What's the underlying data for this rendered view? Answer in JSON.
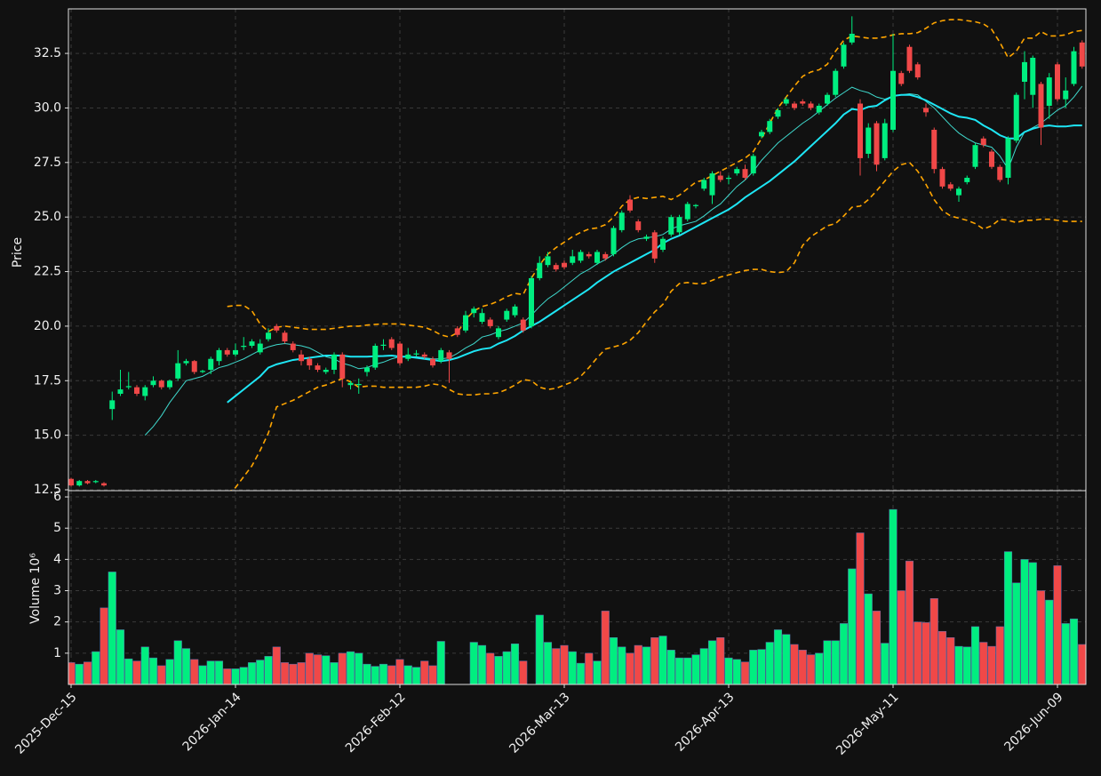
{
  "chart_data": {
    "type": "candlestick",
    "ylabel": "Price",
    "ylim": [
      12.46,
      34.54
    ],
    "yticks": [
      12.5,
      {
        "value": 15,
        "label": "15.0"
      },
      17.5,
      {
        "value": 20,
        "label": "20.0"
      },
      22.5,
      {
        "value": 25,
        "label": "25.0"
      },
      27.5,
      {
        "value": 30,
        "label": "30.0"
      },
      32.5
    ],
    "grid": true,
    "up_color": "#00ee80",
    "down_color": "#f04848",
    "categories": [
      "2025-Dec-15",
      null,
      null,
      null,
      null,
      null,
      null,
      null,
      null,
      null,
      null,
      null,
      null,
      null,
      null,
      null,
      null,
      null,
      null,
      null,
      "2026-Jan-14",
      null,
      null,
      null,
      null,
      null,
      null,
      null,
      null,
      null,
      null,
      null,
      null,
      null,
      null,
      null,
      null,
      null,
      null,
      null,
      "2026-Feb-12",
      null,
      null,
      null,
      null,
      null,
      null,
      null,
      null,
      null,
      null,
      null,
      null,
      null,
      null,
      null,
      null,
      null,
      null,
      null,
      "2026-Mar-13",
      null,
      null,
      null,
      null,
      null,
      null,
      null,
      null,
      null,
      null,
      null,
      null,
      null,
      null,
      null,
      null,
      null,
      null,
      null,
      "2026-Apr-13",
      null,
      null,
      null,
      null,
      null,
      null,
      null,
      null,
      null,
      null,
      null,
      null,
      null,
      null,
      null,
      null,
      null,
      null,
      null,
      "2026-May-11",
      null,
      null,
      null,
      null,
      null,
      null,
      null,
      null,
      null,
      null,
      null,
      null,
      null,
      null,
      null,
      null,
      null,
      null,
      null,
      "2026-Jun-09",
      null,
      null,
      null
    ],
    "open": [
      13.0,
      12.7,
      12.9,
      12.85,
      12.8,
      16.2,
      16.9,
      17.2,
      17.2,
      16.8,
      17.3,
      17.5,
      17.2,
      17.6,
      18.3,
      18.4,
      17.9,
      18.0,
      18.4,
      18.9,
      18.7,
      19.05,
      19.1,
      18.8,
      19.4,
      20.0,
      19.7,
      19.2,
      18.7,
      18.5,
      18.2,
      17.9,
      18.0,
      18.7,
      17.3,
      17.3,
      17.9,
      18.1,
      19.1,
      19.4,
      19.2,
      18.5,
      18.7,
      18.7,
      18.5,
      18.4,
      18.8,
      19.9,
      19.8,
      20.6,
      20.2,
      20.3,
      19.5,
      20.3,
      20.5,
      20.3,
      20.0,
      22.2,
      22.8,
      22.8,
      22.9,
      22.9,
      23.0,
      23.3,
      22.9,
      23.3,
      23.3,
      24.4,
      25.8,
      24.8,
      24.0,
      24.3,
      23.5,
      24.2,
      24.3,
      24.9,
      25.5,
      26.3,
      26.0,
      26.9,
      26.75,
      27.0,
      27.2,
      27.0,
      28.7,
      28.9,
      29.6,
      30.2,
      30.2,
      30.3,
      30.2,
      29.8,
      30.2,
      30.6,
      31.9,
      33.0,
      30.2,
      27.9,
      29.3,
      27.7,
      29.0,
      31.6,
      32.8,
      32.0,
      30.0,
      29.0,
      27.2,
      26.5,
      26.0,
      26.6,
      27.3,
      28.6,
      28.0,
      27.3,
      26.8,
      28.5,
      31.2,
      30.6,
      31.1,
      30.1,
      32.0,
      30.4,
      31.1,
      33.0
    ],
    "high": [
      13.05,
      12.95,
      12.95,
      12.95,
      12.85,
      17.0,
      18.0,
      17.9,
      17.3,
      17.3,
      17.7,
      17.55,
      17.55,
      18.9,
      18.5,
      18.45,
      18.0,
      18.6,
      19.0,
      19.0,
      19.2,
      19.5,
      19.4,
      19.4,
      19.9,
      20.1,
      19.8,
      19.3,
      18.9,
      18.6,
      18.3,
      18.1,
      18.8,
      18.8,
      17.5,
      17.6,
      18.2,
      19.2,
      19.4,
      19.5,
      19.3,
      19.0,
      18.9,
      18.8,
      18.6,
      19.0,
      18.9,
      20.0,
      20.7,
      20.9,
      20.8,
      20.4,
      20.0,
      20.8,
      21.0,
      20.4,
      22.3,
      23.2,
      23.4,
      22.9,
      23.0,
      23.5,
      23.5,
      23.4,
      23.5,
      23.4,
      24.6,
      25.3,
      26.0,
      24.9,
      24.2,
      24.4,
      24.1,
      25.1,
      25.1,
      25.7,
      25.6,
      26.8,
      27.1,
      27.1,
      26.9,
      27.3,
      27.4,
      27.9,
      29.0,
      29.5,
      30.0,
      30.5,
      30.3,
      30.4,
      30.3,
      30.2,
      30.7,
      31.8,
      33.0,
      34.2,
      30.4,
      29.3,
      29.4,
      29.5,
      33.4,
      31.7,
      32.9,
      32.1,
      30.2,
      29.1,
      27.3,
      26.6,
      26.4,
      26.9,
      28.4,
      28.7,
      28.1,
      27.4,
      28.7,
      30.7,
      32.6,
      32.4,
      31.2,
      31.6,
      32.1,
      31.4,
      32.8,
      33.1
    ],
    "low": [
      12.65,
      12.65,
      12.75,
      12.8,
      12.65,
      15.7,
      16.8,
      17.1,
      16.8,
      16.6,
      17.2,
      17.1,
      17.1,
      17.5,
      18.2,
      17.8,
      17.85,
      17.8,
      18.2,
      18.6,
      18.6,
      18.9,
      19.0,
      18.7,
      19.3,
      19.7,
      19.2,
      18.8,
      18.2,
      18.0,
      17.9,
      17.8,
      17.8,
      17.2,
      17.1,
      16.9,
      17.7,
      18.0,
      18.9,
      18.9,
      18.2,
      18.4,
      18.6,
      18.5,
      18.1,
      18.3,
      17.4,
      19.5,
      19.7,
      20.4,
      20.1,
      19.9,
      19.4,
      20.2,
      20.4,
      19.7,
      19.9,
      22.1,
      22.7,
      22.5,
      22.6,
      22.8,
      22.9,
      23.1,
      22.8,
      23.0,
      23.2,
      24.3,
      25.2,
      24.3,
      23.9,
      22.9,
      23.4,
      24.1,
      24.2,
      24.8,
      25.4,
      26.2,
      25.6,
      26.6,
      26.5,
      26.9,
      26.7,
      26.9,
      28.6,
      28.8,
      29.5,
      30.1,
      29.9,
      30.1,
      29.9,
      29.7,
      30.1,
      30.5,
      31.8,
      32.9,
      26.9,
      27.7,
      27.1,
      27.6,
      28.9,
      31.0,
      31.6,
      31.3,
      29.6,
      27.0,
      26.3,
      26.2,
      25.7,
      26.5,
      27.2,
      28.2,
      27.2,
      26.6,
      26.5,
      28.4,
      30.4,
      30.0,
      28.3,
      29.5,
      30.3,
      30.0,
      31.0,
      31.8
    ],
    "close": [
      12.7,
      12.9,
      12.8,
      12.9,
      12.7,
      16.6,
      17.1,
      17.25,
      16.9,
      17.2,
      17.5,
      17.2,
      17.5,
      18.3,
      18.4,
      17.9,
      17.95,
      18.5,
      18.9,
      18.7,
      18.9,
      19.1,
      19.3,
      19.2,
      19.7,
      19.8,
      19.3,
      18.9,
      18.4,
      18.2,
      18.0,
      18.0,
      18.7,
      17.6,
      17.4,
      17.35,
      18.1,
      19.1,
      19.15,
      19.0,
      18.3,
      18.7,
      18.75,
      18.6,
      18.2,
      18.9,
      18.5,
      19.6,
      20.5,
      20.8,
      20.6,
      20.0,
      19.9,
      20.7,
      20.9,
      19.8,
      22.2,
      22.9,
      23.2,
      22.6,
      22.7,
      23.2,
      23.4,
      23.2,
      23.4,
      23.1,
      24.5,
      25.2,
      25.3,
      24.4,
      24.1,
      23.1,
      24.0,
      25.0,
      25.0,
      25.6,
      25.55,
      26.7,
      27.0,
      26.7,
      26.8,
      27.2,
      26.8,
      27.8,
      28.9,
      29.4,
      29.9,
      30.4,
      30.0,
      30.2,
      30.0,
      30.1,
      30.6,
      31.7,
      32.9,
      33.4,
      27.7,
      29.1,
      27.4,
      29.3,
      31.7,
      31.1,
      31.7,
      31.4,
      29.8,
      27.2,
      26.4,
      26.3,
      26.3,
      26.8,
      28.3,
      28.3,
      27.3,
      26.7,
      28.6,
      30.6,
      32.1,
      32.3,
      29.1,
      31.4,
      30.4,
      30.8,
      32.6,
      31.9
    ],
    "lines": [
      {
        "color": "#ffa500",
        "style": "dashed",
        "width": 1.6,
        "values": [
          null,
          null,
          null,
          null,
          null,
          null,
          null,
          null,
          null,
          null,
          null,
          null,
          null,
          null,
          null,
          null,
          null,
          null,
          null,
          20.9,
          20.95,
          20.95,
          20.7,
          20.1,
          19.75,
          19.95,
          20.0,
          19.95,
          19.9,
          19.85,
          19.85,
          19.85,
          19.9,
          19.95,
          20.0,
          20.0,
          20.05,
          20.08,
          20.1,
          20.1,
          20.1,
          20.05,
          20.0,
          19.95,
          19.8,
          19.6,
          19.5,
          19.7,
          20.3,
          20.7,
          20.9,
          21.0,
          21.15,
          21.35,
          21.5,
          21.45,
          22.2,
          22.8,
          23.3,
          23.6,
          23.85,
          24.1,
          24.3,
          24.45,
          24.5,
          24.65,
          25.0,
          25.5,
          25.8,
          25.9,
          25.85,
          25.9,
          25.95,
          25.8,
          26.0,
          26.3,
          26.6,
          26.7,
          26.9,
          27.1,
          27.3,
          27.5,
          27.7,
          28.0,
          28.6,
          29.3,
          30.0,
          30.5,
          31.0,
          31.45,
          31.65,
          31.75,
          32.0,
          32.6,
          33.1,
          33.3,
          33.25,
          33.2,
          33.2,
          33.25,
          33.35,
          33.4,
          33.4,
          33.45,
          33.65,
          33.9,
          34.0,
          34.05,
          34.05,
          34.0,
          33.95,
          33.85,
          33.6,
          33.0,
          32.3,
          32.6,
          33.2,
          33.2,
          33.5,
          33.3,
          33.3,
          33.35,
          33.5,
          33.55
        ]
      },
      {
        "color": "#ffa500",
        "style": "dashed",
        "width": 1.6,
        "values": [
          null,
          null,
          null,
          null,
          null,
          null,
          null,
          null,
          null,
          null,
          null,
          null,
          null,
          null,
          null,
          null,
          null,
          null,
          null,
          12.35,
          12.6,
          13.1,
          13.6,
          14.3,
          15.1,
          16.3,
          16.45,
          16.6,
          16.8,
          17.0,
          17.2,
          17.3,
          17.45,
          17.6,
          17.45,
          17.2,
          17.25,
          17.25,
          17.2,
          17.2,
          17.2,
          17.2,
          17.2,
          17.25,
          17.35,
          17.3,
          17.1,
          16.9,
          16.85,
          16.85,
          16.9,
          16.9,
          16.95,
          17.1,
          17.3,
          17.55,
          17.5,
          17.2,
          17.1,
          17.15,
          17.3,
          17.45,
          17.7,
          18.1,
          18.55,
          18.95,
          19.05,
          19.15,
          19.35,
          19.7,
          20.2,
          20.65,
          21.0,
          21.6,
          21.95,
          22.0,
          21.95,
          21.95,
          22.1,
          22.25,
          22.35,
          22.45,
          22.55,
          22.6,
          22.6,
          22.5,
          22.45,
          22.5,
          22.9,
          23.7,
          24.1,
          24.35,
          24.6,
          24.7,
          25.05,
          25.45,
          25.5,
          25.8,
          26.2,
          26.65,
          27.1,
          27.4,
          27.5,
          27.1,
          26.5,
          25.8,
          25.3,
          25.05,
          24.95,
          24.85,
          24.7,
          24.45,
          24.6,
          24.9,
          24.85,
          24.75,
          24.85,
          24.85,
          24.9,
          24.9,
          24.85,
          24.8,
          24.8,
          24.8
        ]
      },
      {
        "color": "#3fd8cc",
        "style": "solid",
        "width": 1,
        "values": [
          null,
          null,
          null,
          null,
          null,
          null,
          null,
          null,
          null,
          15.0,
          15.4,
          15.9,
          16.5,
          17.0,
          17.5,
          17.6,
          17.7,
          17.9,
          18.1,
          18.2,
          18.35,
          18.5,
          18.7,
          18.9,
          19.05,
          19.15,
          19.2,
          19.15,
          19.1,
          19.0,
          18.8,
          18.6,
          18.5,
          18.3,
          18.2,
          18.05,
          18.1,
          18.25,
          18.35,
          18.5,
          18.6,
          18.6,
          18.6,
          18.55,
          18.5,
          18.5,
          18.55,
          18.75,
          19.0,
          19.2,
          19.5,
          19.6,
          19.75,
          19.85,
          20.0,
          20.15,
          20.5,
          20.9,
          21.25,
          21.5,
          21.8,
          22.1,
          22.4,
          22.6,
          22.85,
          23.05,
          23.3,
          23.6,
          23.85,
          24.0,
          24.05,
          24.1,
          24.2,
          24.45,
          24.6,
          24.7,
          24.8,
          25.05,
          25.35,
          25.6,
          26.0,
          26.4,
          26.7,
          27.1,
          27.6,
          28.0,
          28.4,
          28.7,
          29.0,
          29.3,
          29.55,
          29.85,
          30.15,
          30.45,
          30.7,
          30.95,
          30.8,
          30.7,
          30.5,
          30.4,
          30.55,
          30.6,
          30.65,
          30.6,
          30.3,
          30.0,
          29.6,
          29.2,
          28.85,
          28.6,
          28.4,
          28.3,
          28.2,
          27.8,
          27.2,
          28.2,
          28.9,
          29.1,
          29.3,
          29.6,
          29.9,
          30.1,
          30.5,
          31.0
        ]
      },
      {
        "color": "#1ee6f5",
        "style": "solid",
        "width": 2,
        "values": [
          null,
          null,
          null,
          null,
          null,
          null,
          null,
          null,
          null,
          null,
          null,
          null,
          null,
          null,
          null,
          null,
          null,
          null,
          null,
          16.5,
          16.8,
          17.1,
          17.4,
          17.7,
          18.1,
          18.25,
          18.35,
          18.45,
          18.5,
          18.55,
          18.6,
          18.65,
          18.65,
          18.65,
          18.6,
          18.6,
          18.6,
          18.62,
          18.63,
          18.65,
          18.6,
          18.6,
          18.55,
          18.5,
          18.45,
          18.4,
          18.45,
          18.55,
          18.7,
          18.85,
          18.95,
          19.0,
          19.2,
          19.35,
          19.55,
          19.8,
          20.0,
          20.2,
          20.45,
          20.7,
          20.95,
          21.2,
          21.45,
          21.7,
          22.0,
          22.25,
          22.5,
          22.7,
          22.9,
          23.1,
          23.3,
          23.5,
          23.8,
          24.0,
          24.15,
          24.35,
          24.55,
          24.75,
          24.95,
          25.15,
          25.35,
          25.6,
          25.9,
          26.15,
          26.4,
          26.65,
          26.95,
          27.25,
          27.55,
          27.9,
          28.25,
          28.6,
          28.95,
          29.3,
          29.7,
          29.95,
          29.9,
          30.05,
          30.1,
          30.35,
          30.55,
          30.6,
          30.6,
          30.5,
          30.35,
          30.15,
          29.95,
          29.75,
          29.6,
          29.55,
          29.45,
          29.2,
          29.0,
          28.75,
          28.6,
          28.6,
          28.9,
          29.05,
          29.15,
          29.2,
          29.15,
          29.15,
          29.2,
          29.2
        ]
      }
    ],
    "volume": {
      "ylabel": "Volume  10⁶",
      "ylim": [
        0,
        6.2
      ],
      "yticks": [
        1,
        2,
        3,
        4,
        5,
        6
      ],
      "values": [
        0.7,
        0.65,
        0.72,
        1.05,
        2.45,
        3.6,
        1.75,
        0.82,
        0.75,
        1.2,
        0.85,
        0.6,
        0.8,
        1.4,
        1.15,
        0.8,
        0.6,
        0.75,
        0.75,
        0.5,
        0.5,
        0.55,
        0.7,
        0.78,
        0.9,
        1.2,
        0.7,
        0.65,
        0.7,
        1.0,
        0.95,
        0.92,
        0.7,
        1.0,
        1.05,
        1.0,
        0.65,
        0.58,
        0.65,
        0.6,
        0.8,
        0.6,
        0.55,
        0.75,
        0.6,
        1.38,
        0,
        0,
        0,
        1.35,
        1.25,
        1.0,
        0.9,
        1.05,
        1.3,
        0.75,
        0,
        2.22,
        1.35,
        1.15,
        1.25,
        1.05,
        0.68,
        1.0,
        0.75,
        2.35,
        1.5,
        1.2,
        1.0,
        1.25,
        1.2,
        1.5,
        1.55,
        1.1,
        0.85,
        0.85,
        0.95,
        1.15,
        1.4,
        1.5,
        0.85,
        0.8,
        0.72,
        1.1,
        1.12,
        1.35,
        1.75,
        1.6,
        1.28,
        1.1,
        0.95,
        1.0,
        1.4,
        1.4,
        1.95,
        3.7,
        4.85,
        2.9,
        2.35,
        1.32,
        5.6,
        3.0,
        3.95,
        2.0,
        1.98,
        2.75,
        1.7,
        1.5,
        1.22,
        1.2,
        1.85,
        1.35,
        1.22,
        1.85,
        4.25,
        3.25,
        4.0,
        3.9,
        3.0,
        2.7,
        3.8,
        1.95,
        2.1,
        1.28
      ]
    }
  }
}
